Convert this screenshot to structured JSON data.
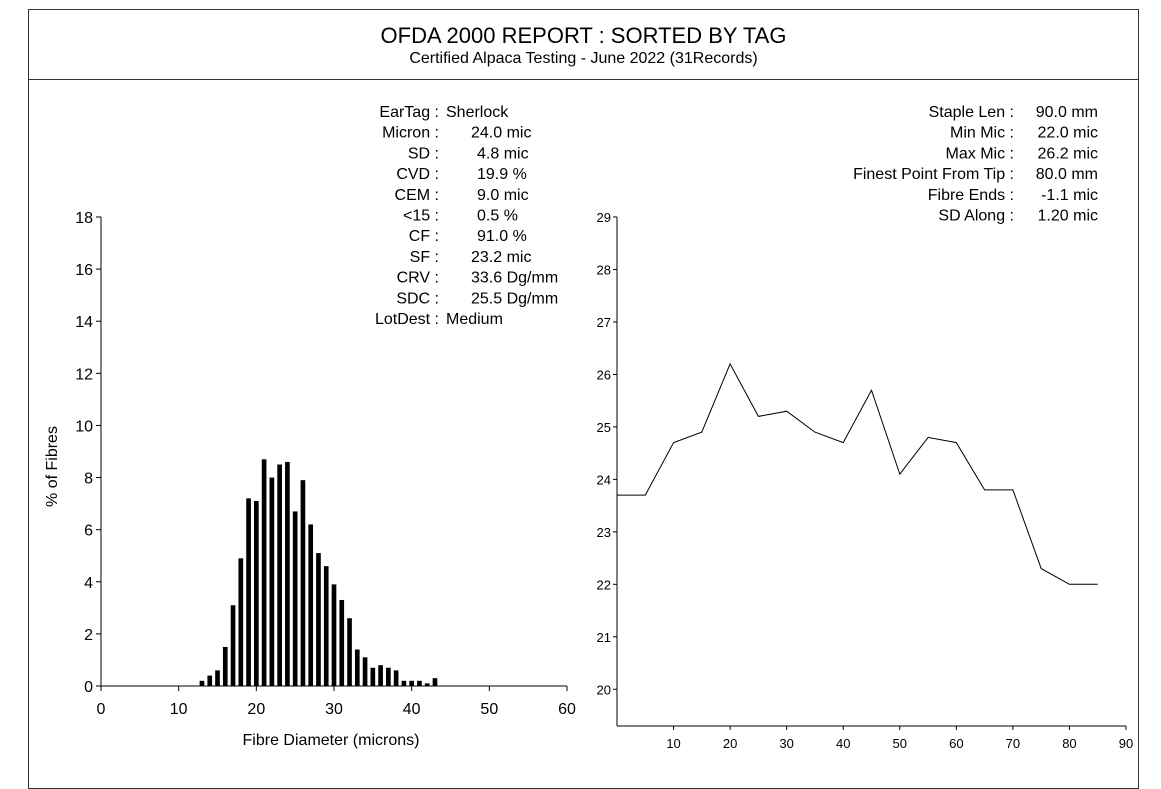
{
  "header": {
    "title": "OFDA 2000 REPORT : SORTED BY TAG",
    "subtitle": "Certified Alpaca Testing - June 2022 (31Records)"
  },
  "stats_left": [
    {
      "label": "EarTag :",
      "value": "Sherlock"
    },
    {
      "label": "Micron :",
      "value": "24.0 mic"
    },
    {
      "label": "SD :",
      "value": "4.8 mic"
    },
    {
      "label": "CVD :",
      "value": "19.9 %"
    },
    {
      "label": "CEM :",
      "value": "9.0 mic"
    },
    {
      "label": "<15 :",
      "value": "0.5 %"
    },
    {
      "label": "CF :",
      "value": "91.0 %"
    },
    {
      "label": "SF :",
      "value": "23.2 mic"
    },
    {
      "label": "CRV :",
      "value": "33.6 Dg/mm"
    },
    {
      "label": "SDC :",
      "value": "25.5 Dg/mm"
    },
    {
      "label": "LotDest :",
      "value": "Medium"
    }
  ],
  "stats_right": [
    {
      "label": "Staple Len :",
      "value": "90.0 mm"
    },
    {
      "label": "Min Mic :",
      "value": "22.0 mic"
    },
    {
      "label": "Max Mic :",
      "value": "26.2 mic"
    },
    {
      "label": "Finest Point From Tip :",
      "value": "80.0 mm"
    },
    {
      "label": "Fibre Ends :",
      "value": "-1.1 mic"
    },
    {
      "label": "SD Along :",
      "value": "1.20 mic"
    }
  ],
  "chart_data": [
    {
      "type": "bar",
      "title": "",
      "xlabel": "Fibre Diameter (microns)",
      "ylabel": "% of Fibres",
      "xlim": [
        0,
        60
      ],
      "ylim": [
        0,
        18
      ],
      "x_ticks": [
        0,
        10,
        20,
        30,
        40,
        50,
        60
      ],
      "y_ticks": [
        0,
        2,
        4,
        6,
        8,
        10,
        12,
        14,
        16,
        18
      ],
      "x": [
        13,
        14,
        15,
        16,
        17,
        18,
        19,
        20,
        21,
        22,
        23,
        24,
        25,
        26,
        27,
        28,
        29,
        30,
        31,
        32,
        33,
        34,
        35,
        36,
        37,
        38,
        39,
        40,
        41,
        42,
        43
      ],
      "values": [
        0.2,
        0.4,
        0.6,
        1.5,
        3.1,
        4.9,
        7.2,
        7.1,
        8.7,
        8.0,
        8.5,
        8.6,
        6.7,
        7.9,
        6.2,
        5.1,
        4.6,
        3.9,
        3.3,
        2.6,
        1.4,
        1.1,
        0.7,
        0.8,
        0.7,
        0.6,
        0.2,
        0.2,
        0.2,
        0.1,
        0.3
      ]
    },
    {
      "type": "line",
      "title": "",
      "xlabel": "",
      "ylabel": "",
      "xlim": [
        0,
        90
      ],
      "ylim": [
        19.3,
        29
      ],
      "x_ticks": [
        10,
        20,
        30,
        40,
        50,
        60,
        70,
        80,
        90
      ],
      "y_ticks": [
        20,
        21,
        22,
        23,
        24,
        25,
        26,
        27,
        28,
        29
      ],
      "x": [
        0,
        5,
        10,
        15,
        20,
        25,
        30,
        35,
        40,
        45,
        50,
        55,
        60,
        65,
        70,
        75,
        80,
        85
      ],
      "y": [
        23.7,
        23.7,
        24.7,
        24.9,
        26.2,
        25.2,
        25.3,
        24.9,
        24.7,
        25.7,
        24.1,
        24.8,
        24.7,
        23.8,
        23.8,
        22.3,
        22.0,
        22.0
      ]
    }
  ]
}
